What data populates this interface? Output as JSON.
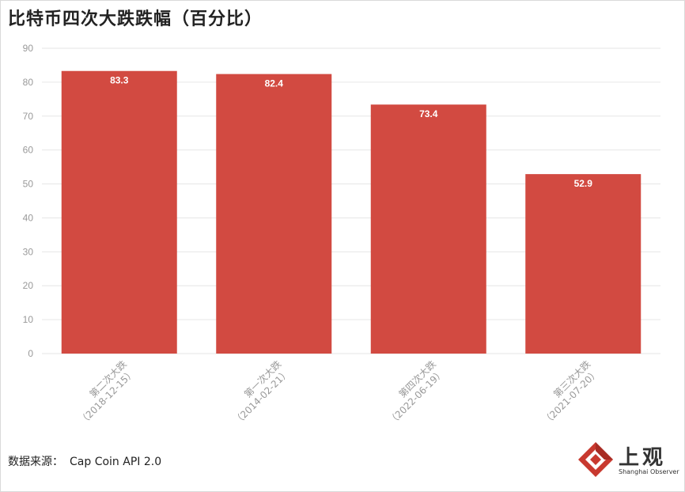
{
  "header": {
    "title": "比特币四次大跌跌幅（百分比）"
  },
  "footer": {
    "source_label": "数据来源：",
    "source_value": "Cap Coin API 2.0",
    "logo_text": "上观",
    "logo_subtext": "Shanghai Observer"
  },
  "colors": {
    "bar": "#d24a41",
    "grid": "#e6e6e6",
    "tick": "#999999",
    "label_text": "#ffffff",
    "logo_red": "#c8392f"
  },
  "chart_data": {
    "type": "bar",
    "title": "比特币四次大跌跌幅（百分比）",
    "categories": [
      [
        "第二次大跌",
        "（2018-12-15）"
      ],
      [
        "第一次大跌",
        "（2014-02-21）"
      ],
      [
        "第四次大跌",
        "（2022-06-19）"
      ],
      [
        "第三次大跌",
        "（2021-07-20）"
      ]
    ],
    "values": [
      83.3,
      82.4,
      73.4,
      52.9
    ],
    "value_labels": [
      "83.3",
      "82.4",
      "73.4",
      "52.9"
    ],
    "ylim": [
      0,
      90
    ],
    "yticks": [
      0,
      10,
      20,
      30,
      40,
      50,
      60,
      70,
      80,
      90
    ],
    "xlabel": "",
    "ylabel": "",
    "grid": true,
    "legend": "none"
  }
}
